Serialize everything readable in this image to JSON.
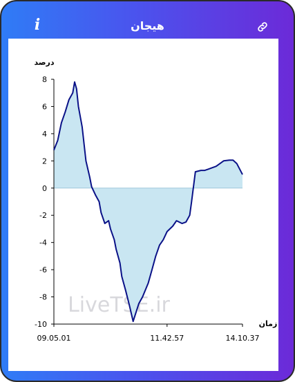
{
  "header": {
    "title": "هیجان",
    "info_icon": "info-icon",
    "link_icon": "link-icon"
  },
  "colors": {
    "gradient_start": "#2f7cf6",
    "gradient_end": "#6c2ad8",
    "line": "#0a1187",
    "fill": "#c9e6f2"
  },
  "chart_data": {
    "type": "area",
    "ylabel": "درصد",
    "xlabel": "زمان",
    "ylim": [
      -10,
      8
    ],
    "yticks": [
      8,
      6,
      4,
      2,
      0,
      -2,
      -4,
      -6,
      -8,
      -10
    ],
    "xticks": [
      "09.05.01",
      "11.42.57",
      "14.10.37"
    ],
    "watermark": "LiveTSE.ir",
    "series": [
      {
        "x": [
          0,
          0.02,
          0.04,
          0.06,
          0.08,
          0.1,
          0.11,
          0.12,
          0.13,
          0.15,
          0.17,
          0.19,
          0.2,
          0.22,
          0.24,
          0.25,
          0.27,
          0.29,
          0.3,
          0.32,
          0.33,
          0.35,
          0.36,
          0.38,
          0.4,
          0.42,
          0.45,
          0.47,
          0.5,
          0.52,
          0.54,
          0.56,
          0.58,
          0.6,
          0.63,
          0.65,
          0.68,
          0.7,
          0.72,
          0.73,
          0.75,
          0.78,
          0.8,
          0.82,
          0.84,
          0.86,
          0.88,
          0.9,
          0.93,
          0.95,
          0.97,
          1.0
        ],
        "values": [
          2.8,
          3.5,
          4.8,
          5.6,
          6.5,
          7.0,
          7.8,
          7.3,
          6.0,
          4.5,
          2.0,
          0.8,
          0.1,
          -0.5,
          -1.0,
          -1.8,
          -2.6,
          -2.4,
          -3.0,
          -3.8,
          -4.5,
          -5.5,
          -6.5,
          -7.5,
          -8.6,
          -9.8,
          -8.5,
          -8.0,
          -7.0,
          -6.0,
          -5.0,
          -4.2,
          -3.8,
          -3.2,
          -2.8,
          -2.4,
          -2.6,
          -2.5,
          -2.0,
          -1.0,
          1.2,
          1.3,
          1.3,
          1.4,
          1.5,
          1.6,
          1.8,
          2.0,
          2.05,
          2.05,
          1.8,
          1.0
        ]
      }
    ],
    "grid": false,
    "legend": "none"
  }
}
